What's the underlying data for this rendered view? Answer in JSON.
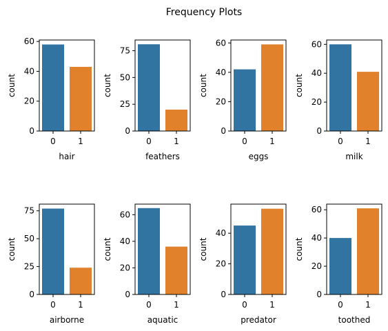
{
  "figure": {
    "title": "Frequency Plots"
  },
  "colors": {
    "bar0": "#3274a1",
    "bar1": "#e1812c",
    "axis": "#000000"
  },
  "chart_data": [
    {
      "type": "bar",
      "categories": [
        "0",
        "1"
      ],
      "values": [
        58,
        43
      ],
      "xlabel": "hair",
      "ylabel": "count",
      "ylim": [
        0,
        61
      ],
      "yticks": [
        0,
        20,
        40,
        60
      ]
    },
    {
      "type": "bar",
      "categories": [
        "0",
        "1"
      ],
      "values": [
        81,
        20
      ],
      "xlabel": "feathers",
      "ylabel": "count",
      "ylim": [
        0,
        85
      ],
      "yticks": [
        0,
        25,
        50,
        75
      ]
    },
    {
      "type": "bar",
      "categories": [
        "0",
        "1"
      ],
      "values": [
        42,
        59
      ],
      "xlabel": "eggs",
      "ylabel": "count",
      "ylim": [
        0,
        62
      ],
      "yticks": [
        0,
        20,
        40,
        60
      ]
    },
    {
      "type": "bar",
      "categories": [
        "0",
        "1"
      ],
      "values": [
        60,
        41
      ],
      "xlabel": "milk",
      "ylabel": "count",
      "ylim": [
        0,
        63
      ],
      "yticks": [
        0,
        20,
        40,
        60
      ]
    },
    {
      "type": "bar",
      "categories": [
        "0",
        "1"
      ],
      "values": [
        77,
        24
      ],
      "xlabel": "airborne",
      "ylabel": "count",
      "ylim": [
        0,
        81
      ],
      "yticks": [
        0,
        25,
        50,
        75
      ]
    },
    {
      "type": "bar",
      "categories": [
        "0",
        "1"
      ],
      "values": [
        65,
        36
      ],
      "xlabel": "aquatic",
      "ylabel": "count",
      "ylim": [
        0,
        68
      ],
      "yticks": [
        0,
        20,
        40,
        60
      ]
    },
    {
      "type": "bar",
      "categories": [
        "0",
        "1"
      ],
      "values": [
        45,
        56
      ],
      "xlabel": "predator",
      "ylabel": "count",
      "ylim": [
        0,
        59
      ],
      "yticks": [
        0,
        20,
        40
      ]
    },
    {
      "type": "bar",
      "categories": [
        "0",
        "1"
      ],
      "values": [
        40,
        61
      ],
      "xlabel": "toothed",
      "ylabel": "count",
      "ylim": [
        0,
        64
      ],
      "yticks": [
        0,
        20,
        40,
        60
      ]
    }
  ]
}
